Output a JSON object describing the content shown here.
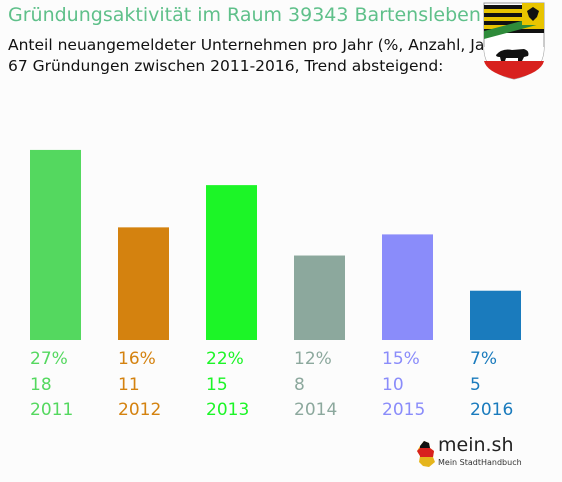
{
  "header": {
    "title": "Gründungsaktivität im Raum 39343 Bartensleben",
    "subtitle_line1": "Anteil neuangemeldeter Unternehmen pro Jahr (%, Anzahl, Jahr)",
    "subtitle_line2": "67 Gründungen zwischen 2011-2016, Trend absteigend:"
  },
  "crest": {
    "icon": "coat-of-arms-saxony-anhalt-icon"
  },
  "logo": {
    "name": "mein.sh",
    "tagline": "Mein StadtHandbuch",
    "icon": "germany-map-icon"
  },
  "chart_data": {
    "type": "bar",
    "categories": [
      "2011",
      "2012",
      "2013",
      "2014",
      "2015",
      "2016"
    ],
    "values": [
      27,
      16,
      22,
      12,
      15,
      7
    ],
    "percent_labels": [
      "27%",
      "16%",
      "22%",
      "12%",
      "15%",
      "7%"
    ],
    "counts": [
      18,
      11,
      15,
      8,
      10,
      5
    ],
    "colors": [
      "#54d85f",
      "#d4820f",
      "#1cf527",
      "#8ca89d",
      "#8a8cfa",
      "#1a7bbd"
    ],
    "grid": false,
    "legend": "none"
  }
}
